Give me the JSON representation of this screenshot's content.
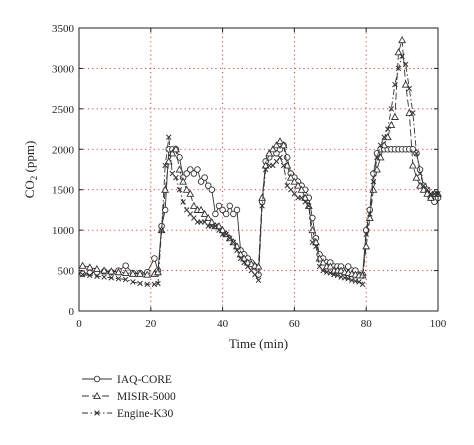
{
  "chart_data": {
    "type": "line",
    "xlabel": "Time (min)",
    "ylabel_main": "CO",
    "ylabel_sub": "2",
    "ylabel_unit": " (ppm)",
    "xlim": [
      0,
      100
    ],
    "ylim": [
      0,
      3500
    ],
    "x_ticks": [
      "0",
      "20",
      "40",
      "60",
      "80",
      "100"
    ],
    "y_ticks": [
      "0",
      "500",
      "1000",
      "1500",
      "2000",
      "2500",
      "3000",
      "3500"
    ],
    "grid": true,
    "legend_position": "bottom-left",
    "series": [
      {
        "name": "IAQ-CORE",
        "line": "solid",
        "marker": "circle",
        "x": [
          1,
          3,
          5,
          7,
          9,
          11,
          13,
          15,
          17,
          19,
          21,
          22,
          23,
          24,
          25,
          26,
          27,
          28,
          29,
          30,
          31,
          32,
          33,
          34,
          35,
          36,
          37,
          38,
          39,
          40,
          41,
          42,
          43,
          44,
          45,
          46,
          47,
          48,
          49,
          50,
          51,
          52,
          53,
          54,
          55,
          56,
          57,
          58,
          59,
          60,
          61,
          62,
          63,
          64,
          65,
          66,
          67,
          68,
          69,
          70,
          71,
          72,
          73,
          74,
          75,
          76,
          77,
          78,
          79,
          80,
          81,
          82,
          83,
          84,
          85,
          86,
          87,
          88,
          89,
          90,
          91,
          92,
          93,
          94,
          95,
          96,
          97,
          98,
          99,
          100
        ],
        "y": [
          460,
          470,
          480,
          490,
          480,
          500,
          560,
          470,
          470,
          480,
          650,
          500,
          1050,
          1250,
          2000,
          2000,
          2000,
          1900,
          1650,
          1700,
          1750,
          1700,
          1750,
          1600,
          1650,
          1550,
          1500,
          1200,
          1300,
          1250,
          1200,
          1300,
          1200,
          1250,
          750,
          700,
          650,
          600,
          550,
          450,
          1350,
          1850,
          1900,
          1950,
          1950,
          2000,
          2050,
          1900,
          1700,
          1650,
          1600,
          1550,
          1500,
          1400,
          1150,
          900,
          700,
          650,
          600,
          600,
          550,
          550,
          550,
          500,
          550,
          500,
          500,
          450,
          450,
          1000,
          1250,
          1700,
          1950,
          2000,
          2000,
          2000,
          2000,
          2000,
          2000,
          2000,
          2000,
          2000,
          2000,
          1950,
          1750,
          1550,
          1500,
          1400,
          1350,
          1400
        ]
      },
      {
        "name": "MISIR-5000",
        "line": "dashed",
        "marker": "triangle",
        "x": [
          1,
          3,
          5,
          7,
          9,
          11,
          13,
          15,
          17,
          19,
          21,
          22,
          23,
          24,
          25,
          26,
          27,
          28,
          29,
          30,
          31,
          32,
          33,
          34,
          35,
          36,
          37,
          38,
          39,
          40,
          41,
          42,
          43,
          44,
          45,
          46,
          47,
          48,
          49,
          50,
          51,
          52,
          53,
          54,
          55,
          56,
          57,
          58,
          59,
          60,
          61,
          62,
          63,
          64,
          65,
          66,
          67,
          68,
          69,
          70,
          71,
          72,
          73,
          74,
          75,
          76,
          77,
          78,
          79,
          80,
          81,
          82,
          83,
          84,
          85,
          86,
          87,
          88,
          89,
          90,
          91,
          92,
          93,
          94,
          95,
          96,
          97,
          98,
          99,
          100
        ],
        "y": [
          560,
          540,
          520,
          500,
          490,
          480,
          470,
          460,
          460,
          450,
          460,
          480,
          1000,
          1500,
          1850,
          1950,
          2000,
          1750,
          1600,
          1500,
          1450,
          1300,
          1250,
          1250,
          1200,
          1150,
          1100,
          1050,
          1050,
          1000,
          950,
          900,
          850,
          800,
          700,
          650,
          600,
          580,
          560,
          550,
          1400,
          1800,
          1950,
          2000,
          2050,
          2100,
          2050,
          1800,
          1650,
          1600,
          1550,
          1500,
          1400,
          1300,
          1000,
          850,
          650,
          600,
          550,
          550,
          500,
          500,
          500,
          480,
          470,
          460,
          450,
          440,
          440,
          800,
          1150,
          1500,
          1750,
          1900,
          2050,
          2150,
          2300,
          2400,
          3200,
          3350,
          2800,
          2450,
          1800,
          1650,
          1550,
          1500,
          1450,
          1400,
          1450,
          1450
        ]
      },
      {
        "name": "Engine-K30",
        "line": "dashdot",
        "marker": "x",
        "x": [
          1,
          3,
          5,
          7,
          9,
          11,
          13,
          15,
          17,
          19,
          21,
          22,
          23,
          24,
          25,
          26,
          27,
          28,
          29,
          30,
          31,
          32,
          33,
          34,
          35,
          36,
          37,
          38,
          39,
          40,
          41,
          42,
          43,
          44,
          45,
          46,
          47,
          48,
          49,
          50,
          51,
          52,
          53,
          54,
          55,
          56,
          57,
          58,
          59,
          60,
          61,
          62,
          63,
          64,
          65,
          66,
          67,
          68,
          69,
          70,
          71,
          72,
          73,
          74,
          75,
          76,
          77,
          78,
          79,
          80,
          81,
          82,
          83,
          84,
          85,
          86,
          87,
          88,
          89,
          90,
          91,
          92,
          93,
          94,
          95,
          96,
          97,
          98,
          99,
          100
        ],
        "y": [
          450,
          440,
          430,
          420,
          410,
          400,
          390,
          360,
          340,
          330,
          330,
          340,
          1000,
          1800,
          2150,
          1700,
          1650,
          1500,
          1350,
          1250,
          1200,
          1150,
          1100,
          1100,
          1100,
          1050,
          1050,
          1050,
          1000,
          950,
          950,
          900,
          850,
          750,
          650,
          600,
          550,
          500,
          450,
          380,
          1300,
          1750,
          1800,
          1800,
          1850,
          1900,
          1800,
          1550,
          1500,
          1450,
          1400,
          1400,
          1350,
          1300,
          850,
          800,
          550,
          500,
          480,
          470,
          450,
          440,
          420,
          410,
          400,
          380,
          370,
          360,
          330,
          950,
          1200,
          1600,
          1900,
          2050,
          2150,
          2250,
          2500,
          2800,
          3000,
          3150,
          3050,
          2750,
          2450,
          1950,
          1700,
          1550,
          1500,
          1450,
          1450,
          1450
        ]
      }
    ]
  }
}
